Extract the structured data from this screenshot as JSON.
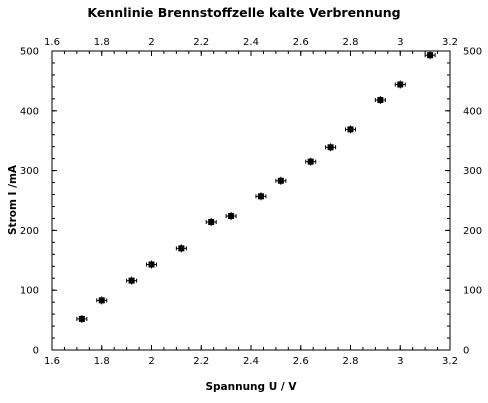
{
  "chart_data": {
    "type": "scatter",
    "title": "Kennlinie Brennstoffzelle kalte Verbrennung",
    "xlabel": "Spannung U / V",
    "ylabel": "Strom I /mA",
    "xlim": [
      1.6,
      3.2
    ],
    "ylim": [
      0,
      500
    ],
    "xticks": [
      "1.6",
      "1.8",
      "2",
      "2.2",
      "2.4",
      "2.6",
      "2.8",
      "3",
      "3.2"
    ],
    "yticks": [
      "0",
      "100",
      "200",
      "300",
      "400",
      "500"
    ],
    "x_tick_values": [
      1.6,
      1.8,
      2.0,
      2.2,
      2.4,
      2.6,
      2.8,
      3.0,
      3.2
    ],
    "y_tick_values": [
      0,
      100,
      200,
      300,
      400,
      500
    ],
    "x_minor_step": 0.05,
    "y_minor_step": 20,
    "grid": false,
    "mirror_axes": true,
    "marker": "square-with-error-bars",
    "color": "#000000",
    "points": [
      {
        "x": 1.72,
        "y": 52
      },
      {
        "x": 1.8,
        "y": 83
      },
      {
        "x": 1.92,
        "y": 116
      },
      {
        "x": 2.0,
        "y": 143
      },
      {
        "x": 2.12,
        "y": 170
      },
      {
        "x": 2.24,
        "y": 214
      },
      {
        "x": 2.32,
        "y": 224
      },
      {
        "x": 2.44,
        "y": 257
      },
      {
        "x": 2.52,
        "y": 283
      },
      {
        "x": 2.64,
        "y": 315
      },
      {
        "x": 2.72,
        "y": 339
      },
      {
        "x": 2.8,
        "y": 369
      },
      {
        "x": 2.92,
        "y": 418
      },
      {
        "x": 3.0,
        "y": 444
      },
      {
        "x": 3.12,
        "y": 493
      }
    ]
  }
}
